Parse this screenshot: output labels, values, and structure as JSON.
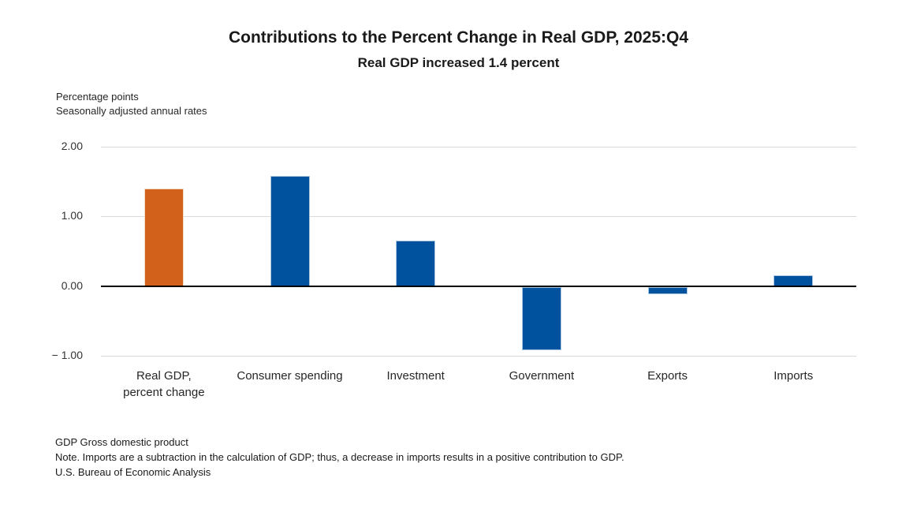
{
  "chart_data": {
    "type": "bar",
    "title": "Contributions to the Percent Change in Real GDP, 2025:Q4",
    "subtitle": "Real GDP increased 1.4 percent",
    "unit_note": [
      "Percentage points",
      "Seasonally adjusted annual rates"
    ],
    "categories": [
      "Real GDP,\npercent change",
      "Consumer spending",
      "Investment",
      "Government",
      "Exports",
      "Imports"
    ],
    "values": [
      1.4,
      1.58,
      0.65,
      -0.91,
      -0.11,
      0.16
    ],
    "bar_colors": [
      "#D2611C",
      "#00519E",
      "#00519E",
      "#00519E",
      "#00519E",
      "#00519E"
    ],
    "bar_border_colors": [
      "#F4DEC0",
      "#A9C7E2",
      "#A9C7E2",
      "#A9C7E2",
      "#A9C7E2",
      "#A9C7E2"
    ],
    "xlabel": "",
    "ylabel": "Percentage points",
    "ylim": [
      -1,
      2
    ],
    "yticks": [
      {
        "value": 2,
        "label": "2.00"
      },
      {
        "value": 1,
        "label": "1.00"
      },
      {
        "value": 0,
        "label": "0.00"
      },
      {
        "value": -1,
        "label": "− 1.00"
      }
    ],
    "grid": true,
    "legend": "none",
    "colors": {
      "gridline": "#D9D9D9",
      "zero_line": "#000000",
      "highlight_bar": "#D2611C",
      "component_bar": "#00519E"
    }
  },
  "footer": {
    "lines": [
      "GDP Gross domestic product",
      "Note. Imports are a subtraction in the calculation of GDP; thus, a decrease in imports results in a positive contribution to GDP.",
      "U.S. Bureau of Economic Analysis"
    ]
  }
}
